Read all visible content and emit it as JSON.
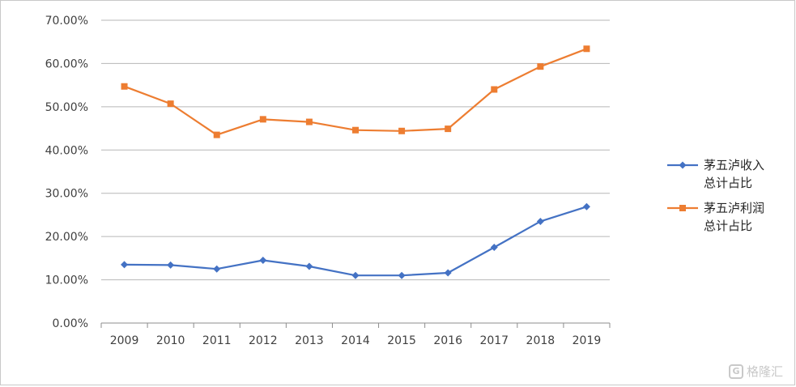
{
  "chart_data": {
    "type": "line",
    "title": "",
    "xlabel": "",
    "ylabel": "",
    "x": [
      "2009",
      "2010",
      "2011",
      "2012",
      "2013",
      "2014",
      "2015",
      "2016",
      "2017",
      "2018",
      "2019"
    ],
    "ylim": [
      0,
      70
    ],
    "yticks": [
      "0.00%",
      "10.00%",
      "20.00%",
      "30.00%",
      "40.00%",
      "50.00%",
      "60.00%",
      "70.00%"
    ],
    "grid": true,
    "legend_position": "right",
    "series": [
      {
        "name": "茅五泸收入总计占比",
        "name_lines": [
          "茅五泸收入",
          "总计占比"
        ],
        "marker": "diamond",
        "color": "#4472C4",
        "values": [
          13.5,
          13.4,
          12.5,
          14.5,
          13.1,
          11.0,
          11.0,
          11.6,
          17.5,
          23.5,
          26.9
        ]
      },
      {
        "name": "茅五泸利润总计占比",
        "name_lines": [
          "茅五泸利润",
          "总计占比"
        ],
        "marker": "square",
        "color": "#ED7D31",
        "values": [
          54.7,
          50.7,
          43.5,
          47.1,
          46.5,
          44.6,
          44.4,
          44.9,
          54.0,
          59.3,
          63.4
        ]
      }
    ]
  },
  "watermark": {
    "logo": "G",
    "text": "格隆汇"
  }
}
